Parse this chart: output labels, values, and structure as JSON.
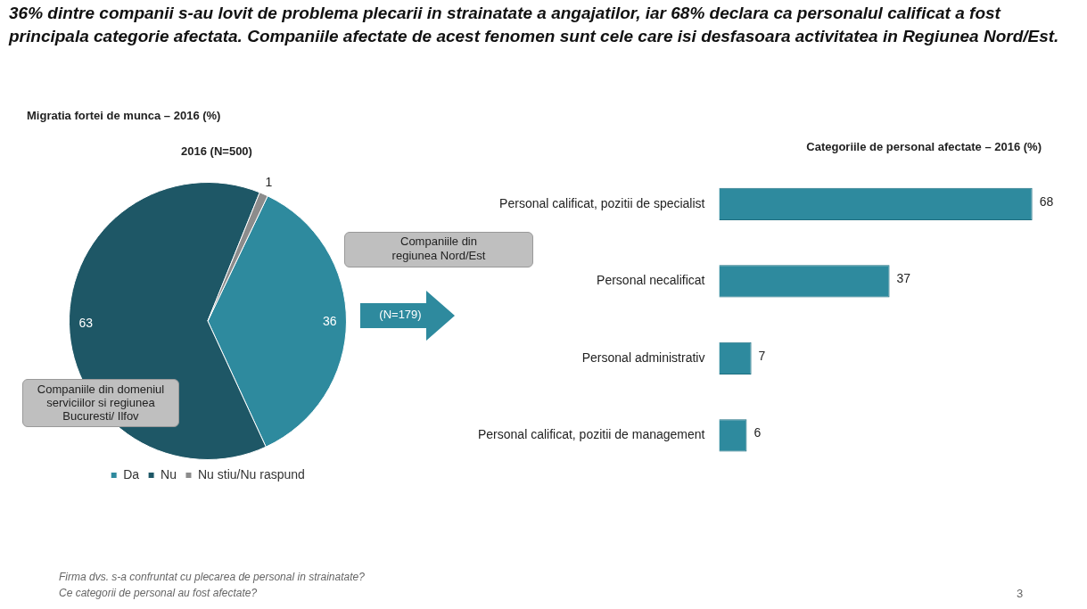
{
  "chart_data": [
    {
      "type": "other",
      "title": "36% dintre companii s-au lovit de problema plecarii in strainatate a angajatilor, iar 68% declara ca personalul calificat a fost principala categorie afectata. Companiile afectate de acest fenomen sunt cele care isi desfasoara activitatea in Regiunea Nord/Est.",
      "annotations": [
        "Firma dvs. s-a confruntat cu plecarea de personal in strainatate?",
        "Ce categorii de personal au fost afectate?",
        "3"
      ]
    },
    {
      "type": "pie",
      "subtitle": "Migratia fortei de munca – 2016 (%)",
      "title": "2016 (N=500)",
      "categories": [
        "Da",
        "Nu",
        "Nu stiu/Nu raspund"
      ],
      "values": [
        36,
        63,
        1
      ],
      "colors": [
        "#2e8a9e",
        "#1e5766",
        "#8c8c8c"
      ],
      "data_labels": true,
      "legend": "bottom",
      "annotations": [
        "Companiile din regiunea Nord/Est",
        "Companiile din domeniul serviciilor  si regiunea Bucuresti/ Ilfov",
        "(N=179)"
      ]
    },
    {
      "type": "bar",
      "orientation": "horizontal",
      "title": "Categoriile de personal afectate – 2016 (%)",
      "categories": [
        "Personal calificat, pozitii de specialist",
        "Personal necalificat",
        "Personal administrativ",
        "Personal calificat, pozitii de management"
      ],
      "values": [
        68,
        37,
        7,
        6
      ],
      "color": "#2e8a9e",
      "data_labels": true
    }
  ]
}
